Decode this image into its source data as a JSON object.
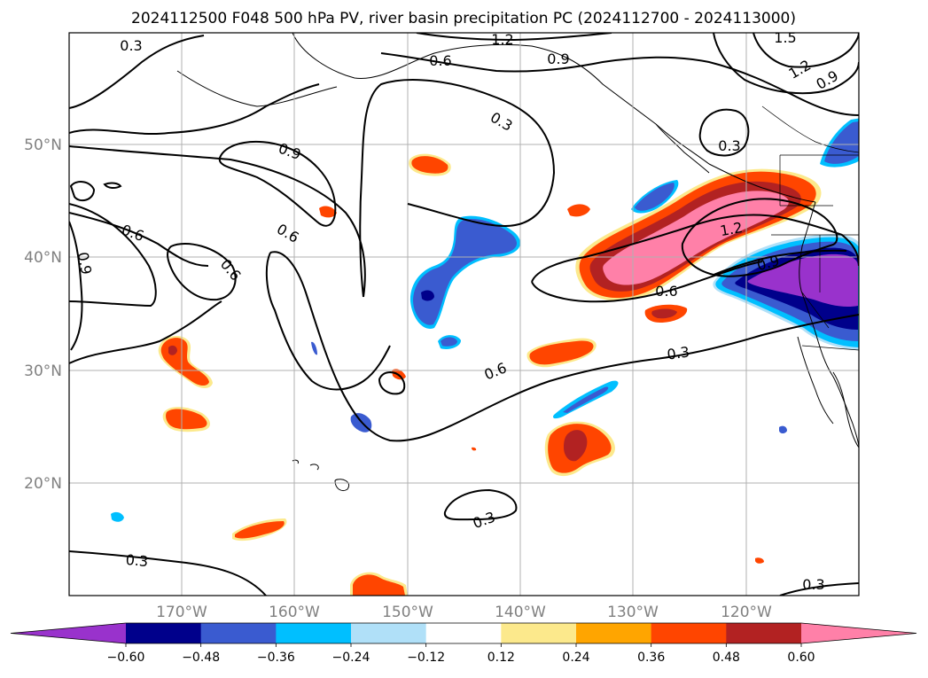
{
  "title": "2024112500 F048 500 hPa PV, river basin precipitation PC (2024112700 - 2024113000)",
  "map": {
    "lat_labels": [
      "50°N",
      "40°N",
      "30°N",
      "20°N"
    ],
    "lon_labels": [
      "170°W",
      "160°W",
      "150°W",
      "140°W",
      "130°W",
      "120°W"
    ],
    "pv_contour_labels": [
      "0.3",
      "0.3",
      "0.3",
      "0.3",
      "0.3",
      "0.3",
      "0.3",
      "0.6",
      "0.6",
      "0.6",
      "0.6",
      "0.6",
      "0.6",
      "0.9",
      "0.9",
      "0.9",
      "0.9",
      "0.9",
      "1.2",
      "1.2",
      "1.2",
      "1.5"
    ]
  },
  "colorbar": {
    "tick_labels": [
      "−0.60",
      "−0.48",
      "−0.36",
      "−0.24",
      "−0.12",
      "0.12",
      "0.24",
      "0.36",
      "0.48",
      "0.60"
    ],
    "colors": [
      "#9932cc",
      "#00008b",
      "#3a5bd0",
      "#00bfff",
      "#b0e0f8",
      "#ffffff",
      "#fce98c",
      "#ffa500",
      "#ff4500",
      "#b22222",
      "#ff80a8"
    ]
  },
  "chart_data": {
    "type": "heatmap",
    "title": "2024112500 F048 500 hPa PV, river basin precipitation PC (2024112700 - 2024113000)",
    "variables": [
      "500 hPa PV (contours)",
      "river basin precipitation PC (filled)"
    ],
    "lat_range": [
      10,
      60
    ],
    "lon_range": [
      -180,
      -110
    ],
    "contour_levels": [
      0.3,
      0.6,
      0.9,
      1.2,
      1.5
    ],
    "color_levels": [
      -0.6,
      -0.48,
      -0.36,
      -0.24,
      -0.12,
      0.12,
      0.24,
      0.36,
      0.48,
      0.6
    ],
    "colorbar_extend": "both",
    "gridlines": true
  }
}
